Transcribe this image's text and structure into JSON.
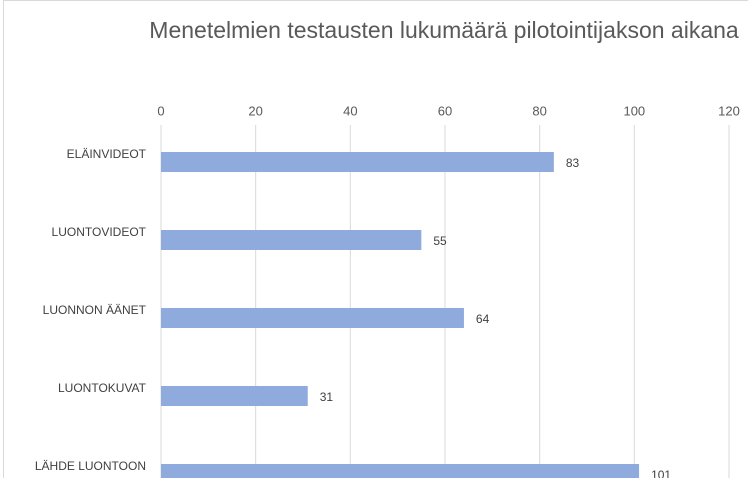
{
  "chart_data": {
    "type": "bar",
    "orientation": "horizontal",
    "title": "Menetelmien testausten lukumäärä pilotointijakson aikana",
    "categories": [
      "ELÄINVIDEOT",
      "LUONTOVIDEOT",
      "LUONNON ÄÄNET",
      "LUONTOKUVAT",
      "LÄHDE LUONTOON"
    ],
    "values": [
      83,
      55,
      64,
      31,
      101
    ],
    "color": "#8faadc",
    "xlim": [
      0,
      120
    ],
    "xticks": [
      0,
      20,
      40,
      60,
      80,
      100,
      120
    ],
    "grid": true
  }
}
